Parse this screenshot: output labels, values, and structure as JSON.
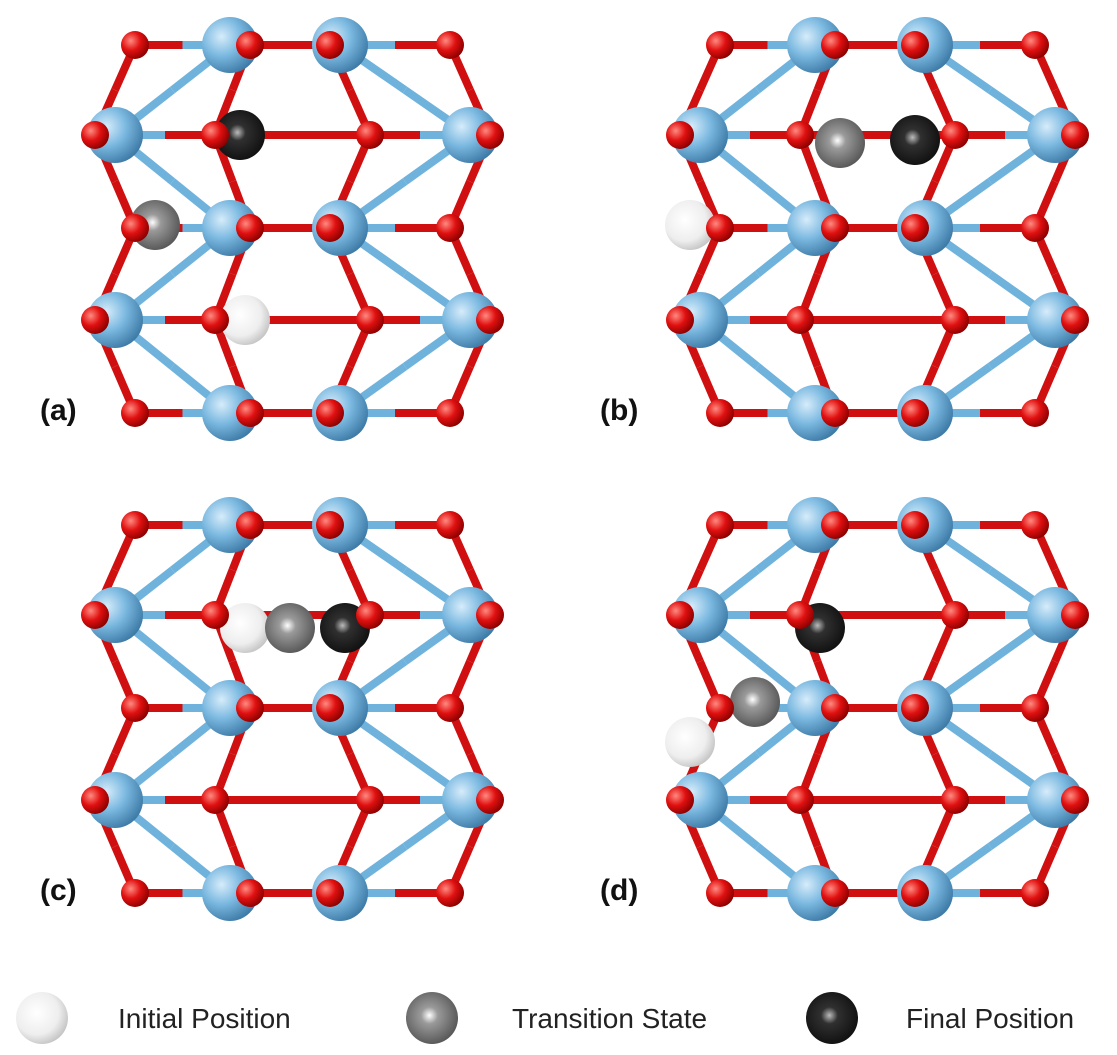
{
  "panels": [
    {
      "label": "(a)"
    },
    {
      "label": "(b)"
    },
    {
      "label": "(c)"
    },
    {
      "label": "(d)"
    }
  ],
  "legend": [
    {
      "label": "Initial Position"
    },
    {
      "label": "Transition State"
    },
    {
      "label": "Final Position"
    }
  ]
}
